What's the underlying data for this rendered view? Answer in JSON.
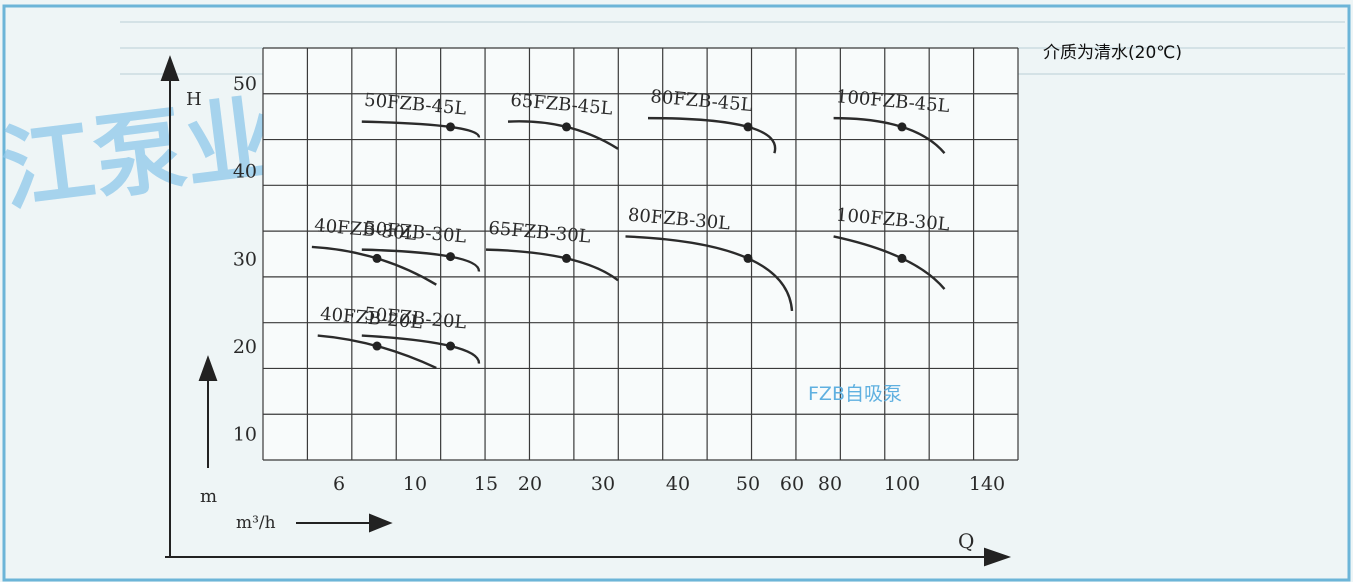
{
  "chart_data": {
    "type": "line",
    "title": "FZB自吸泵",
    "note": "介质为清水(20℃)",
    "watermark": "江泵业",
    "ylabel": "H",
    "yunit": "m",
    "xlabel": "Q",
    "xunit": "m³/h",
    "ylim": [
      7,
      54
    ],
    "yticks": [
      10,
      20,
      30,
      40,
      50
    ],
    "xticks": [
      "6",
      "10",
      "15",
      "20",
      "30",
      "40",
      "50",
      "60",
      "80",
      "100",
      "140"
    ],
    "grid": true,
    "colors": {
      "curve": "#2b2b2b",
      "grid": "#3a3a3a",
      "point": "#222222",
      "title": "#5fb0e0",
      "watermark": "#8ec8ea",
      "background": "#eef5f6"
    },
    "series": [
      {
        "name": "50FZB-45L",
        "x": [
          7.2,
          12.5,
          14.5
        ],
        "y": [
          45.6,
          45.0,
          43.8
        ],
        "rated": [
          12.5,
          45.0
        ]
      },
      {
        "name": "65FZB-45L",
        "x": [
          17.5,
          25,
          32
        ],
        "y": [
          45.6,
          45.0,
          42.5
        ],
        "rated": [
          25,
          45.0
        ]
      },
      {
        "name": "80FZB-45L",
        "x": [
          36,
          50,
          56
        ],
        "y": [
          46.0,
          45.0,
          42.0
        ],
        "rated": [
          50,
          45.0
        ]
      },
      {
        "name": "100FZB-45L",
        "x": [
          81,
          100,
          120
        ],
        "y": [
          46.0,
          45.0,
          42.0
        ],
        "rated": [
          100,
          45.0
        ]
      },
      {
        "name": "40FZB-30L",
        "x": [
          5.0,
          8.0,
          11.5
        ],
        "y": [
          31.3,
          30.0,
          27.0
        ],
        "rated": [
          8.0,
          30.0
        ]
      },
      {
        "name": "50FZB-30L",
        "x": [
          7.2,
          12.5,
          14.5
        ],
        "y": [
          31.0,
          30.2,
          28.5
        ],
        "rated": [
          12.5,
          30.2
        ]
      },
      {
        "name": "65FZB-30L",
        "x": [
          15,
          25,
          32
        ],
        "y": [
          31.0,
          30.0,
          27.5
        ],
        "rated": [
          25,
          30.0
        ]
      },
      {
        "name": "80FZB-30L",
        "x": [
          33,
          50,
          60
        ],
        "y": [
          32.5,
          30.0,
          24.0
        ],
        "rated": [
          50,
          30.0
        ]
      },
      {
        "name": "100FZB-30L",
        "x": [
          81,
          100,
          120
        ],
        "y": [
          32.5,
          30.0,
          26.5
        ],
        "rated": [
          100,
          30.0
        ]
      },
      {
        "name": "40FZB-20L",
        "x": [
          5.2,
          8.0,
          11.5
        ],
        "y": [
          21.2,
          20.0,
          17.5
        ],
        "rated": [
          8.0,
          20.0
        ]
      },
      {
        "name": "50FZB-20L",
        "x": [
          7.2,
          12.5,
          14.5
        ],
        "y": [
          21.2,
          20.0,
          18.0
        ],
        "rated": [
          12.5,
          20.0
        ]
      }
    ]
  }
}
